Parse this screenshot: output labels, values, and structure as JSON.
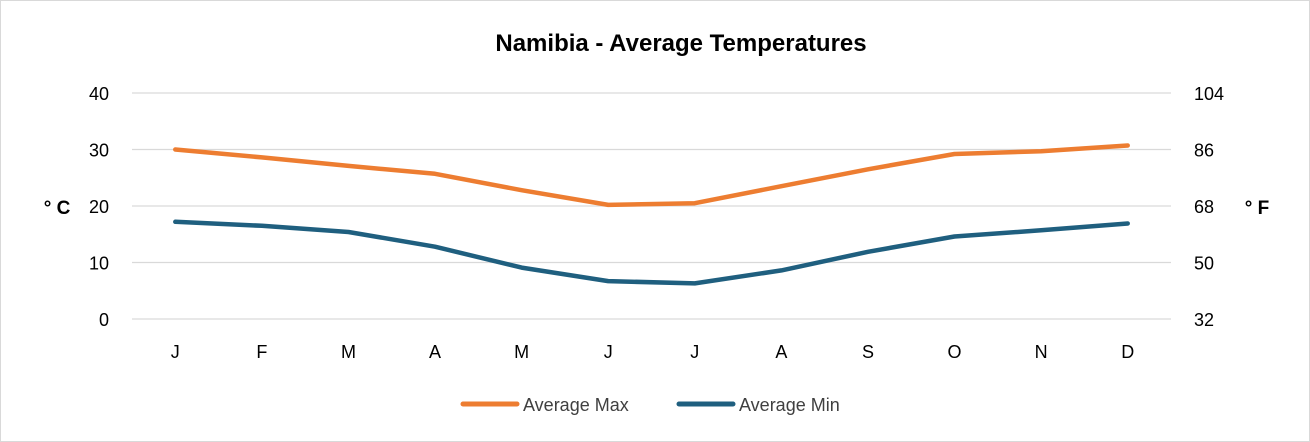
{
  "chart_data": {
    "type": "line",
    "title": "Namibia - Average Temperatures",
    "categories": [
      "J",
      "F",
      "M",
      "A",
      "M",
      "J",
      "J",
      "A",
      "S",
      "O",
      "N",
      "D"
    ],
    "series": [
      {
        "name": "Average Max",
        "color": "#ed7d31",
        "values": [
          30.0,
          28.6,
          27.1,
          25.7,
          22.8,
          20.2,
          20.5,
          23.5,
          26.5,
          29.2,
          29.7,
          30.7
        ]
      },
      {
        "name": "Average Min",
        "color": "#1f5f7f",
        "values": [
          17.2,
          16.5,
          15.4,
          12.8,
          9.1,
          6.7,
          6.3,
          8.6,
          11.9,
          14.6,
          15.7,
          16.9
        ]
      }
    ],
    "y_left": {
      "label": "° C",
      "ylim": [
        0,
        40
      ],
      "ticks": [
        0,
        10,
        20,
        30,
        40
      ],
      "tick_labels": [
        "0",
        "10",
        "20",
        "30",
        "40"
      ]
    },
    "y_right": {
      "label": "° F",
      "ylim": [
        32,
        104
      ],
      "ticks": [
        32,
        50,
        68,
        86,
        104
      ],
      "tick_labels": [
        "32",
        "50",
        "68",
        "86",
        "104"
      ]
    },
    "grid": true,
    "legend_position": "bottom",
    "gridline_color": "#d9d9d9"
  }
}
